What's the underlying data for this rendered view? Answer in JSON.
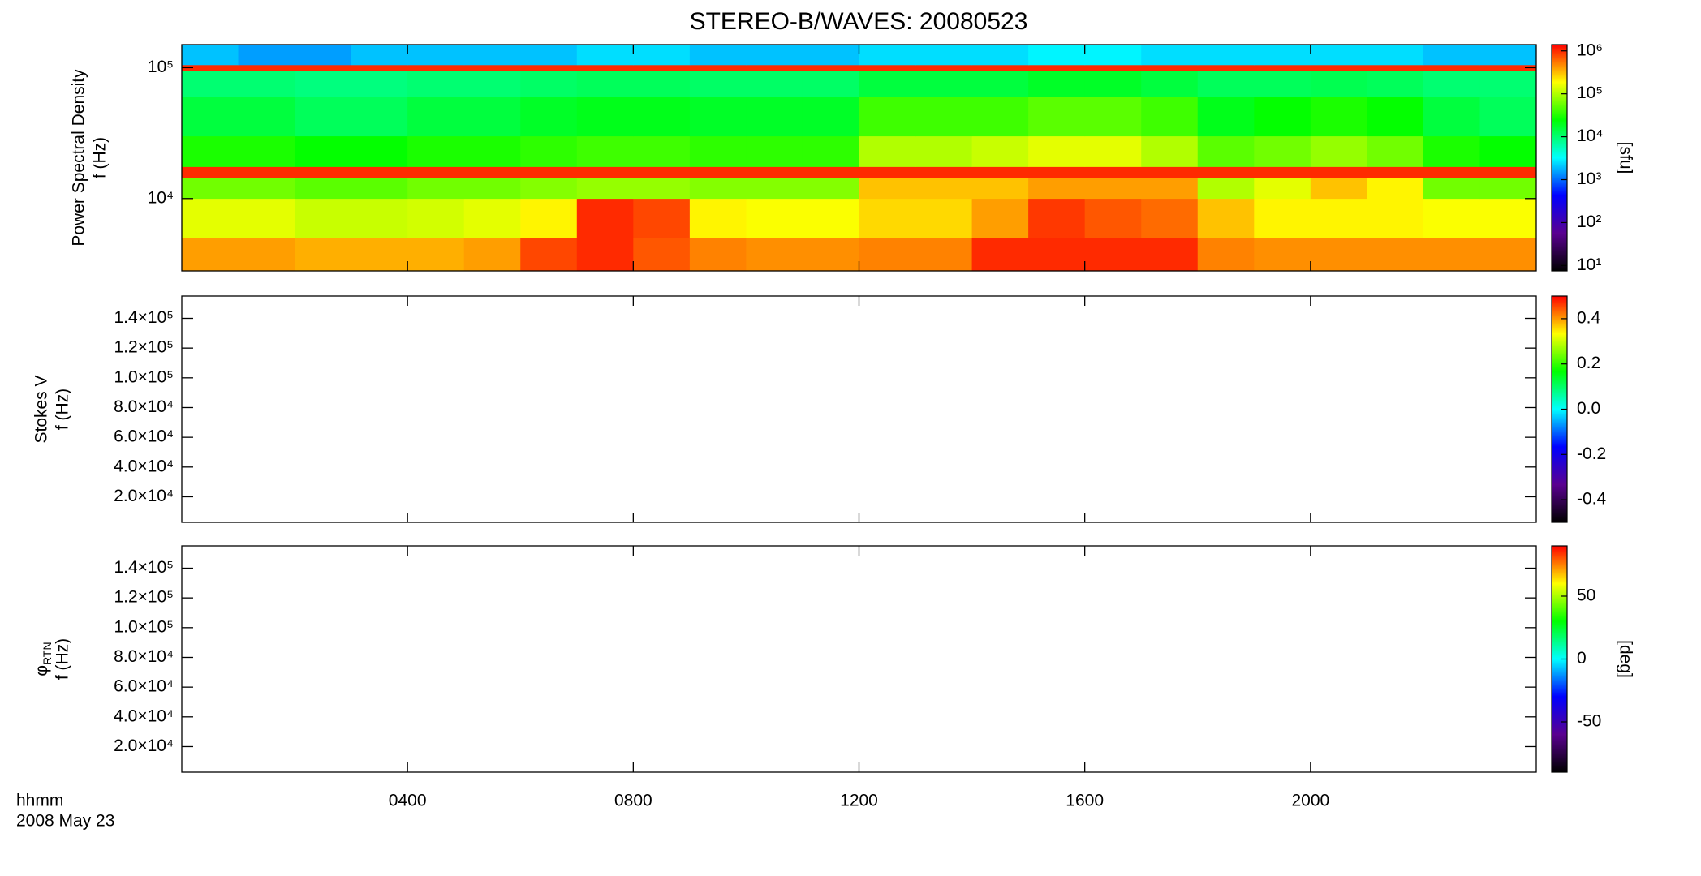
{
  "title": "STEREO-B/WAVES: 20080523",
  "xlim": [
    0,
    24
  ],
  "xticks": [
    {
      "value": 4,
      "label": "0400"
    },
    {
      "value": 8,
      "label": "0800"
    },
    {
      "value": 12,
      "label": "1200"
    },
    {
      "value": 16,
      "label": "1600"
    },
    {
      "value": 20,
      "label": "2000"
    }
  ],
  "xlabel": [
    "hhmm",
    "2008 May 23"
  ],
  "chart_data": [
    {
      "type": "heatmap",
      "ylabel": [
        "Power Spectral Density",
        "f (Hz)"
      ],
      "ylog": true,
      "ylim": [
        2800,
        150000
      ],
      "yticks": [
        {
          "value": 10000,
          "label": "10⁴"
        },
        {
          "value": 100000,
          "label": "10⁵"
        }
      ],
      "x_edges": [
        0,
        1,
        2,
        3,
        4,
        5,
        6,
        7,
        8,
        9,
        10,
        11,
        12,
        13,
        14,
        15,
        16,
        17,
        18,
        19,
        20,
        21,
        22,
        23,
        24
      ],
      "y_edges": [
        2800,
        5000,
        10000,
        14500,
        17500,
        30000,
        60000,
        95000,
        105000,
        150000
      ],
      "z": [
        [
          400000,
          400000,
          350000,
          350000,
          350000,
          400000,
          800000,
          1000000,
          700000,
          500000,
          450000,
          450000,
          500000,
          500000,
          1000000,
          1000000,
          1000000,
          1000000,
          500000,
          450000,
          450000,
          450000,
          450000,
          450000
        ],
        [
          150000,
          150000,
          120000,
          120000,
          130000,
          150000,
          200000,
          1000000,
          800000,
          200000,
          180000,
          180000,
          250000,
          250000,
          400000,
          900000,
          700000,
          600000,
          300000,
          200000,
          200000,
          200000,
          180000,
          180000
        ],
        [
          60000,
          60000,
          50000,
          50000,
          60000,
          60000,
          70000,
          80000,
          80000,
          70000,
          70000,
          70000,
          300000,
          300000,
          300000,
          400000,
          400000,
          400000,
          100000,
          150000,
          300000,
          200000,
          60000,
          60000
        ],
        [
          1000000,
          1000000,
          1000000,
          1000000,
          1000000,
          1000000,
          1000000,
          1000000,
          1000000,
          1000000,
          1000000,
          1000000,
          1000000,
          1000000,
          1000000,
          1000000,
          1000000,
          1000000,
          1000000,
          1000000,
          1000000,
          1000000,
          1000000,
          1000000
        ],
        [
          30000,
          30000,
          25000,
          25000,
          30000,
          30000,
          35000,
          40000,
          40000,
          35000,
          35000,
          35000,
          100000,
          100000,
          120000,
          150000,
          150000,
          100000,
          50000,
          60000,
          80000,
          60000,
          30000,
          25000
        ],
        [
          15000,
          15000,
          12000,
          12000,
          15000,
          15000,
          18000,
          20000,
          20000,
          18000,
          18000,
          18000,
          40000,
          40000,
          40000,
          50000,
          50000,
          40000,
          20000,
          25000,
          30000,
          25000,
          15000,
          12000
        ],
        [
          10000,
          10000,
          9000,
          9000,
          10000,
          10000,
          11000,
          12000,
          12000,
          11000,
          11000,
          11000,
          15000,
          15000,
          15000,
          18000,
          18000,
          15000,
          12000,
          12000,
          13000,
          12000,
          10000,
          10000
        ],
        [
          1000000,
          1000000,
          1000000,
          1000000,
          1000000,
          1000000,
          1000000,
          1000000,
          1000000,
          1000000,
          1000000,
          1000000,
          1000000,
          1000000,
          1000000,
          1000000,
          1000000,
          1000000,
          1000000,
          1000000,
          1000000,
          1000000,
          1000000,
          1000000
        ],
        [
          2000,
          1500,
          1500,
          2000,
          2000,
          2000,
          2000,
          2500,
          2500,
          2000,
          2000,
          2000,
          2500,
          2500,
          2500,
          3000,
          3000,
          2500,
          2500,
          2500,
          2500,
          2500,
          2000,
          2000
        ]
      ],
      "colormap": [
        "#000000",
        "#5a0090",
        "#0000ff",
        "#00ffff",
        "#00ff00",
        "#ffff00",
        "#ff0000"
      ],
      "colorbar": {
        "label": "[sfu]",
        "log": true,
        "lim": [
          7.5,
          1400000
        ],
        "ticks": [
          {
            "value": 10,
            "label": "10¹"
          },
          {
            "value": 100,
            "label": "10²"
          },
          {
            "value": 1000,
            "label": "10³"
          },
          {
            "value": 10000,
            "label": "10⁴"
          },
          {
            "value": 100000,
            "label": "10⁵"
          },
          {
            "value": 1000000,
            "label": "10⁶"
          }
        ]
      }
    },
    {
      "type": "heatmap",
      "ylabel": [
        "Stokes V",
        "f (Hz)"
      ],
      "ylog": false,
      "ylim": [
        2800,
        155000
      ],
      "yticks": [
        {
          "value": 20000,
          "label": "2.0×10⁴"
        },
        {
          "value": 40000,
          "label": "4.0×10⁴"
        },
        {
          "value": 60000,
          "label": "6.0×10⁴"
        },
        {
          "value": 80000,
          "label": "8.0×10⁴"
        },
        {
          "value": 100000,
          "label": "1.0×10⁵"
        },
        {
          "value": 120000,
          "label": "1.2×10⁵"
        },
        {
          "value": 140000,
          "label": "1.4×10⁵"
        }
      ],
      "colormap": [
        "#000000",
        "#5a0090",
        "#0000ff",
        "#00ffff",
        "#00ff00",
        "#ffff00",
        "#ff0000"
      ],
      "colorbar": {
        "log": false,
        "lim": [
          -0.5,
          0.5
        ],
        "ticks": [
          -0.4,
          -0.2,
          {
            "value": 0,
            "label": "0.0"
          },
          0.2,
          0.4
        ]
      }
    },
    {
      "type": "heatmap",
      "ylabel_symbol": {
        "text": "φ",
        "subscript": "RTN"
      },
      "ylabel": [
        "f (Hz)"
      ],
      "ylog": false,
      "ylim": [
        2800,
        155000
      ],
      "yticks": [
        {
          "value": 20000,
          "label": "2.0×10⁴"
        },
        {
          "value": 40000,
          "label": "4.0×10⁴"
        },
        {
          "value": 60000,
          "label": "6.0×10⁴"
        },
        {
          "value": 80000,
          "label": "8.0×10⁴"
        },
        {
          "value": 100000,
          "label": "1.0×10⁵"
        },
        {
          "value": 120000,
          "label": "1.2×10⁵"
        },
        {
          "value": 140000,
          "label": "1.4×10⁵"
        }
      ],
      "colormap": [
        "#000000",
        "#5a0090",
        "#0000ff",
        "#00ffff",
        "#00ff00",
        "#ffff00",
        "#ff0000"
      ],
      "colorbar": {
        "label": "[deg]",
        "log": false,
        "lim": [
          -90,
          90
        ],
        "ticks": [
          -50,
          0,
          50
        ]
      }
    }
  ]
}
